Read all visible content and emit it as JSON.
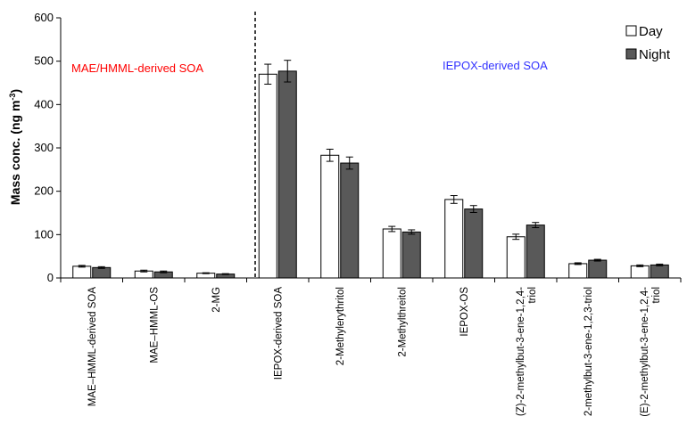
{
  "chart_data": {
    "type": "bar",
    "ylabel": "Mass conc. (ng m",
    "ylabel_sup": "-3",
    "ylabel_end": ")",
    "ylim": [
      0,
      600
    ],
    "yticks": [
      "0",
      "100",
      "200",
      "300",
      "400",
      "500",
      "600"
    ],
    "grid": false,
    "legend_position": "top-right",
    "categories": [
      [
        "MAE–HMML-derived SOA"
      ],
      [
        "MAE–HMML-OS"
      ],
      [
        "2-MG"
      ],
      [
        "IEPOX-derived SOA"
      ],
      [
        "2-Methylerythritol"
      ],
      [
        "2-Methylthreitol"
      ],
      [
        "IEPOX-OS"
      ],
      [
        "(Z)-2-methylbut-3-ene-1,2,4-",
        "triol"
      ],
      [
        "2-methylbut-3-ene-1,2,3-triol"
      ],
      [
        "(E)-2-methylbut-3-ene-1,2,4-",
        "triol"
      ]
    ],
    "series": [
      {
        "name": "Day",
        "color": "#ffffff",
        "values": [
          27,
          16,
          11,
          470,
          283,
          113,
          181,
          95,
          33,
          28
        ],
        "errors": [
          2,
          2,
          1,
          23,
          14,
          6,
          9,
          6,
          2,
          2
        ]
      },
      {
        "name": "Night",
        "color": "#595959",
        "values": [
          24,
          14,
          9,
          477,
          265,
          106,
          159,
          122,
          41,
          30
        ],
        "errors": [
          2,
          2,
          1,
          25,
          14,
          5,
          8,
          6,
          2,
          2
        ]
      }
    ],
    "annotations": [
      {
        "text": "MAE/HMML-derived SOA",
        "color": "#ff0000"
      },
      {
        "text": "IEPOX-derived SOA",
        "color": "#3333ff"
      }
    ]
  }
}
